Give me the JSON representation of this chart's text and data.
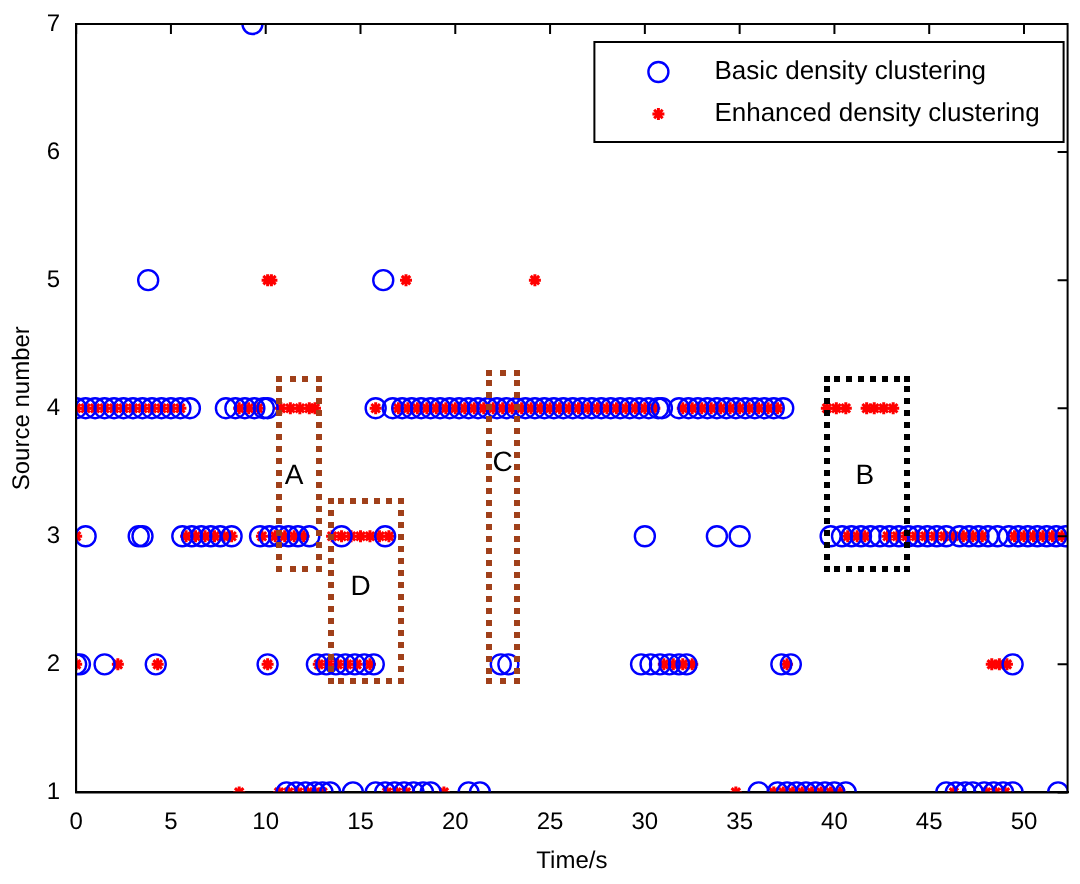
{
  "chart_data": {
    "type": "scatter",
    "xlabel": "Time/s",
    "ylabel": "Source number",
    "xlim": [
      0,
      52.3
    ],
    "ylim": [
      1,
      7
    ],
    "xticks": [
      0,
      5,
      10,
      15,
      20,
      25,
      30,
      35,
      40,
      45,
      50
    ],
    "yticks": [
      1,
      2,
      3,
      4,
      5,
      6,
      7
    ],
    "grid": false,
    "legend": "top right",
    "annotations": [
      "A",
      "B",
      "C",
      "D"
    ],
    "series": [
      {
        "name": "Basic density clustering",
        "color": "#0000ff",
        "marker": "circle",
        "x": [
          0,
          0.5,
          1,
          1.5,
          2,
          2.5,
          3,
          3.5,
          4,
          4.5,
          5,
          5.5,
          6,
          7.9,
          8.4,
          8.9,
          9.4,
          9.9,
          10.1,
          15.8,
          16.7,
          17.2,
          17.7,
          18.2,
          18.7,
          19.2,
          19.7,
          20.2,
          20.7,
          21.2,
          21.7,
          22.2,
          22.7,
          23.2,
          23.7,
          24.2,
          24.7,
          25.2,
          25.7,
          26.2,
          26.7,
          27.2,
          27.7,
          28.2,
          28.7,
          29.2,
          29.7,
          30.2,
          30.7,
          30.9,
          31.8,
          32.3,
          32.8,
          33.3,
          33.8,
          34.3,
          34.8,
          35.3,
          35.8,
          36.3,
          36.8,
          37.3,
          0.5,
          3.3,
          3.5,
          5.6,
          6.1,
          6.6,
          7.1,
          7.6,
          8.2,
          9.7,
          10.2,
          10.7,
          11.2,
          11.7,
          12.3,
          14,
          16.3,
          30,
          33.8,
          35,
          39.8,
          40.4,
          40.9,
          41.4,
          41.9,
          42.4,
          42.9,
          43.4,
          43.9,
          44.4,
          44.9,
          45.4,
          45.9,
          46.6,
          47.1,
          47.6,
          48.1,
          48.6,
          49.2,
          49.7,
          50.2,
          50.7,
          51.2,
          51.7,
          52.2,
          0,
          0.2,
          1.5,
          4.2,
          10.1,
          12.7,
          13.2,
          13.7,
          14.2,
          14.7,
          15.2,
          15.7,
          22.4,
          22.8,
          29.8,
          30.3,
          30.8,
          31.3,
          31.8,
          32.2,
          37.2,
          37.7,
          49.4,
          11.1,
          11.6,
          12.1,
          12.6,
          13,
          13.4,
          14.6,
          15.8,
          16.3,
          16.8,
          17.3,
          17.8,
          18.3,
          18.7,
          20.7,
          21.3,
          36,
          37,
          37.5,
          38,
          38.5,
          39,
          39.5,
          40,
          40.6,
          45.9,
          46.4,
          46.9,
          47.3,
          47.9,
          48.4,
          48.9,
          49.4,
          51.8,
          3.8,
          16.2,
          9.3
        ],
        "values": [
          4,
          4,
          4,
          4,
          4,
          4,
          4,
          4,
          4,
          4,
          4,
          4,
          4,
          4,
          4,
          4,
          4,
          4,
          4,
          4,
          4,
          4,
          4,
          4,
          4,
          4,
          4,
          4,
          4,
          4,
          4,
          4,
          4,
          4,
          4,
          4,
          4,
          4,
          4,
          4,
          4,
          4,
          4,
          4,
          4,
          4,
          4,
          4,
          4,
          4,
          4,
          4,
          4,
          4,
          4,
          4,
          4,
          4,
          4,
          4,
          4,
          4,
          3,
          3,
          3,
          3,
          3,
          3,
          3,
          3,
          3,
          3,
          3,
          3,
          3,
          3,
          3,
          3,
          3,
          3,
          3,
          3,
          3,
          3,
          3,
          3,
          3,
          3,
          3,
          3,
          3,
          3,
          3,
          3,
          3,
          3,
          3,
          3,
          3,
          3,
          3,
          3,
          3,
          3,
          3,
          3,
          3,
          2,
          2,
          2,
          2,
          2,
          2,
          2,
          2,
          2,
          2,
          2,
          2,
          2,
          2,
          2,
          2,
          2,
          2,
          2,
          2,
          2,
          2,
          2,
          1,
          1,
          1,
          1,
          1,
          1,
          1,
          1,
          1,
          1,
          1,
          1,
          1,
          1,
          1,
          1,
          1,
          1,
          1,
          1,
          1,
          1,
          1,
          1,
          1,
          1,
          1,
          1,
          1,
          1,
          1,
          1,
          1,
          1,
          5,
          5,
          7
        ]
      },
      {
        "name": "Enhanced density clustering",
        "color": "#ff0000",
        "marker": "cross",
        "x": [
          0,
          0.5,
          1,
          1.5,
          2,
          2.5,
          3,
          3.5,
          4,
          4.5,
          5,
          5.5,
          8.6,
          9.1,
          9.6,
          10.8,
          11.3,
          11.8,
          12.3,
          12.6,
          15.8,
          17,
          17.5,
          18,
          18.5,
          19,
          19.5,
          20,
          20.5,
          21,
          21.5,
          22,
          22.5,
          23,
          23.5,
          24,
          24.5,
          25,
          25.5,
          26,
          26.5,
          27,
          27.5,
          28,
          28.5,
          29,
          29.5,
          30,
          30.5,
          32,
          32.5,
          33,
          33.5,
          34,
          34.5,
          35,
          35.5,
          36,
          36.5,
          37,
          39.6,
          40.1,
          40.6,
          41.7,
          42.1,
          42.6,
          43.1,
          0,
          5.8,
          6.3,
          6.8,
          7.3,
          7.8,
          8.2,
          9.8,
          10.5,
          11,
          11.5,
          12,
          13.5,
          14,
          14.5,
          15,
          15.5,
          16,
          16.5,
          40.7,
          41.2,
          41.6,
          42.8,
          43.3,
          43.8,
          44.3,
          44.8,
          45.3,
          45.8,
          46.3,
          46.8,
          47.3,
          47.8,
          49.5,
          50,
          50.5,
          51,
          51.5,
          52,
          0,
          2.2,
          4.3,
          10.1,
          12.8,
          13.3,
          13.8,
          14.3,
          14.8,
          15.5,
          31,
          31.5,
          32,
          32.5,
          37.5,
          48.3,
          48.7,
          49.1,
          8.6,
          10.7,
          11.2,
          11.7,
          12.2,
          12.6,
          13,
          16.4,
          16.9,
          17.4,
          19.4,
          34.8,
          36.8,
          37.3,
          37.8,
          38.3,
          38.8,
          39.3,
          39.8,
          40.3,
          46.3,
          48,
          48.5,
          49,
          10.1,
          10.3,
          17.4,
          24.2
        ],
        "values": [
          4,
          4,
          4,
          4,
          4,
          4,
          4,
          4,
          4,
          4,
          4,
          4,
          4,
          4,
          4,
          4,
          4,
          4,
          4,
          4,
          4,
          4,
          4,
          4,
          4,
          4,
          4,
          4,
          4,
          4,
          4,
          4,
          4,
          4,
          4,
          4,
          4,
          4,
          4,
          4,
          4,
          4,
          4,
          4,
          4,
          4,
          4,
          4,
          4,
          4,
          4,
          4,
          4,
          4,
          4,
          4,
          4,
          4,
          4,
          4,
          4,
          4,
          4,
          4,
          4,
          4,
          4,
          3,
          3,
          3,
          3,
          3,
          3,
          3,
          3,
          3,
          3,
          3,
          3,
          3,
          3,
          3,
          3,
          3,
          3,
          3,
          3,
          3,
          3,
          3,
          3,
          3,
          3,
          3,
          3,
          3,
          3,
          3,
          3,
          3,
          3,
          3,
          3,
          3,
          3,
          3,
          2,
          2,
          2,
          2,
          2,
          2,
          2,
          2,
          2,
          2,
          2,
          2,
          2,
          2,
          2,
          2,
          2,
          2,
          1,
          1,
          1,
          1,
          1,
          1,
          1,
          1,
          1,
          1,
          1,
          1,
          1,
          1,
          1,
          1,
          1,
          1,
          1,
          1,
          1,
          1,
          1,
          1,
          5,
          5,
          5,
          5
        ]
      }
    ]
  }
}
